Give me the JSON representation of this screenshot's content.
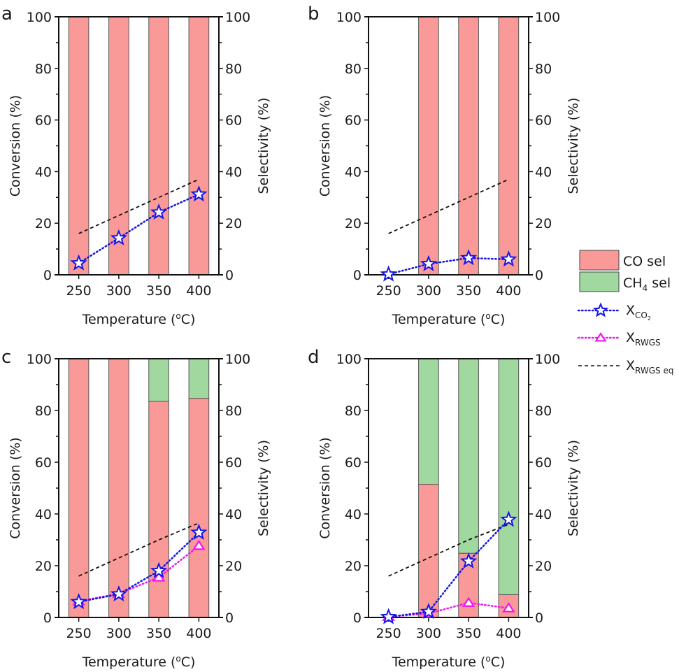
{
  "chart_data": [
    {
      "type": "bar",
      "panel_label": "a",
      "xlabel": "Temperature (oC)",
      "xlabel_main": "Temperature (",
      "xlabel_sup": "o",
      "xlabel_end": "C)",
      "ylabel_left": "Conversion (%)",
      "ylabel_right": "Selectivity (%)",
      "xlim": [
        225,
        425
      ],
      "ylim": [
        0,
        100
      ],
      "categories": [
        250,
        300,
        350,
        400
      ],
      "xticks": [
        "250",
        "300",
        "350",
        "400"
      ],
      "yticks": [
        "0",
        "20",
        "40",
        "60",
        "80",
        "100"
      ],
      "stacked_bars": [
        {
          "name": "CO sel",
          "values": [
            100,
            100,
            100,
            100
          ]
        },
        {
          "name": "CH4 sel",
          "values": [
            0,
            0,
            0,
            0
          ]
        }
      ],
      "series": [
        {
          "name": "X_CO2",
          "type": "line",
          "values": [
            4.5,
            14.2,
            24.2,
            31.2
          ]
        },
        {
          "name": "X_RWGS eq",
          "type": "line",
          "values": [
            16,
            23,
            30,
            37
          ]
        }
      ]
    },
    {
      "type": "bar",
      "panel_label": "b",
      "xlabel": "Temperature (oC)",
      "xlabel_main": "Temperature (",
      "xlabel_sup": "o",
      "xlabel_end": "C)",
      "ylabel_left": "Conversion (%)",
      "ylabel_right": "Selectivity (%)",
      "xlim": [
        225,
        425
      ],
      "ylim": [
        0,
        100
      ],
      "categories": [
        250,
        300,
        350,
        400
      ],
      "xticks": [
        "250",
        "300",
        "350",
        "400"
      ],
      "yticks": [
        "0",
        "20",
        "40",
        "60",
        "80",
        "100"
      ],
      "stacked_bars": [
        {
          "name": "CO sel",
          "values": [
            0,
            100,
            100,
            100
          ]
        },
        {
          "name": "CH4 sel",
          "values": [
            0,
            0,
            0,
            0
          ]
        }
      ],
      "series": [
        {
          "name": "X_CO2",
          "type": "line",
          "values": [
            0.2,
            4.2,
            6.5,
            6.0
          ]
        },
        {
          "name": "X_RWGS eq",
          "type": "line",
          "values": [
            16,
            23,
            30,
            37
          ]
        }
      ]
    },
    {
      "type": "bar",
      "panel_label": "c",
      "xlabel": "Temperature (oC)",
      "xlabel_main": "Temperature (",
      "xlabel_sup": "o",
      "xlabel_end": "C)",
      "ylabel_left": "Conversion (%)",
      "ylabel_right": "Selectivity (%)",
      "xlim": [
        225,
        425
      ],
      "ylim": [
        0,
        100
      ],
      "categories": [
        250,
        300,
        350,
        400
      ],
      "xticks": [
        "250",
        "300",
        "350",
        "400"
      ],
      "yticks": [
        "0",
        "20",
        "40",
        "60",
        "80",
        "100"
      ],
      "stacked_bars": [
        {
          "name": "CO sel",
          "values": [
            100,
            100,
            83.5,
            84.7
          ]
        },
        {
          "name": "CH4 sel",
          "values": [
            0,
            0,
            16.5,
            15.3
          ]
        }
      ],
      "series": [
        {
          "name": "X_CO2",
          "type": "line",
          "values": [
            6.0,
            9.0,
            18.0,
            32.8
          ]
        },
        {
          "name": "X_RWGS",
          "type": "line",
          "values": [
            6.3,
            9.2,
            15.5,
            27.7
          ]
        },
        {
          "name": "X_RWGS eq",
          "type": "line",
          "values": [
            16,
            23,
            30,
            36.5
          ]
        }
      ]
    },
    {
      "type": "bar",
      "panel_label": "d",
      "xlabel": "Temperature (oC)",
      "xlabel_main": "Temperature (",
      "xlabel_sup": "o",
      "xlabel_end": "C)",
      "ylabel_left": "Conversion (%)",
      "ylabel_right": "Selectivity (%)",
      "xlim": [
        225,
        425
      ],
      "ylim": [
        0,
        100
      ],
      "categories": [
        250,
        300,
        350,
        400
      ],
      "xticks": [
        "250",
        "300",
        "350",
        "400"
      ],
      "yticks": [
        "0",
        "20",
        "40",
        "60",
        "80",
        "100"
      ],
      "stacked_bars": [
        {
          "name": "CO sel",
          "values": [
            0,
            51.5,
            24.8,
            8.8
          ]
        },
        {
          "name": "CH4 sel",
          "values": [
            0,
            48.5,
            75.2,
            91.2
          ]
        }
      ],
      "series": [
        {
          "name": "X_CO2",
          "type": "line",
          "values": [
            0.2,
            2.2,
            21.7,
            37.8
          ]
        },
        {
          "name": "X_RWGS",
          "type": "line",
          "values": [
            0.3,
            1.5,
            5.7,
            3.6
          ]
        },
        {
          "name": "X_RWGS eq",
          "type": "line",
          "values": [
            16,
            23,
            30,
            36
          ]
        }
      ]
    }
  ],
  "legend": {
    "placement": "right",
    "items": [
      {
        "key": "co_sel",
        "label": "CO sel",
        "main": "CO sel",
        "sub": "",
        "tail": ""
      },
      {
        "key": "ch4_sel",
        "label": "CH4 sel",
        "main": "CH",
        "sub": "4",
        "tail": " sel"
      },
      {
        "key": "x_co2",
        "label": "X_CO2",
        "main": "X",
        "sub": "CO",
        "subsub": "2",
        "tail": ""
      },
      {
        "key": "x_rwgs",
        "label": "X_RWGS",
        "main": "X",
        "sub": "RWGS",
        "tail": ""
      },
      {
        "key": "x_rwgs_eq",
        "label": "X_RWGS eq",
        "main": "X",
        "sub": "RWGS eq",
        "tail": ""
      }
    ]
  },
  "colors": {
    "co_sel": "#f99a98",
    "ch4_sel": "#a0d8a0",
    "x_co2": "#1414e6",
    "x_rwgs": "#f014f0",
    "x_rwgs_eq": "#111111",
    "bar_edge": "#555555",
    "axis": "#111111"
  }
}
